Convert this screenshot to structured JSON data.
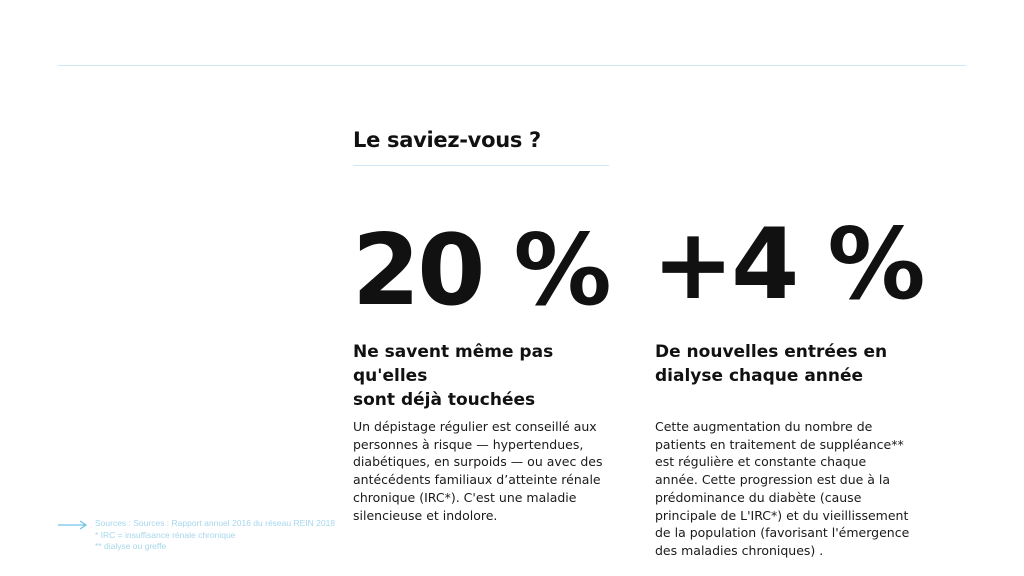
{
  "heading": "Le saviez-vous ?",
  "stats": [
    {
      "value": "20 %",
      "subtitle": "Ne savent même pas qu'elles\nsont  déjà touchées",
      "body_lines": [
        "Un dépistage régulier est conseillé aux",
        "personnes à risque — hypertendues,",
        "diabétiques, en surpoids — ou avec des",
        "antécédents familiaux d’atteinte rénale",
        "chronique (IRC*). C'est une maladie",
        "silencieuse et indolore."
      ]
    },
    {
      "value": "+4 %",
      "subtitle": "De nouvelles entrées en\ndialyse chaque année",
      "body_lines": [
        "Cette augmentation du nombre de",
        "patients en traitement de suppléance**",
        "est régulière et constante chaque",
        "année. Cette progression est due à la",
        "prédominance du diabète (cause",
        "principale de L'IRC*) et du vieillissement",
        "de la population (favorisant l'émergence",
        "des maladies chroniques) ."
      ]
    }
  ],
  "sources": {
    "icon": "arrow-right-icon",
    "lines": [
      "Sources : Sources : Rapport annuel 2016 du réseau REIN 2018",
      "*  IRC = insuffisance rénale chronique",
      "** dialyse ou greffe"
    ]
  },
  "colors": {
    "accent_rule": "#cfeaf5",
    "sources_text": "#a6d7ec",
    "arrow": "#6fc3e6"
  }
}
